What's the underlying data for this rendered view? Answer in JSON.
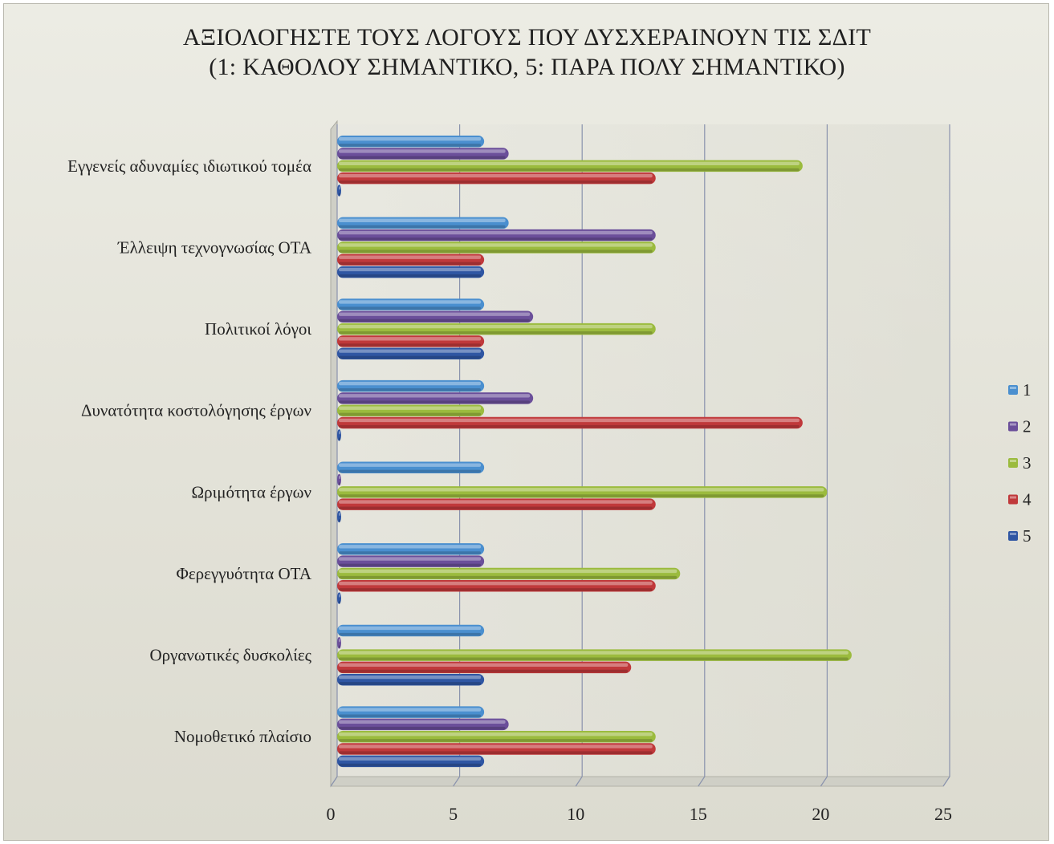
{
  "chart_data": {
    "type": "bar",
    "orientation": "horizontal",
    "title": "ΑΞΙΟΛΟΓΗΣΤΕ ΤΟΥΣ ΛΟΓΟΥΣ ΠΟΥ ΔΥΣΧΕΡΑΙΝΟΥΝ ΤΙΣ ΣΔΙΤ",
    "subtitle": "(1: ΚΑΘΟΛΟΥ ΣΗΜΑΝΤΙΚΟ, 5: ΠΑΡΑ ΠΟΛΥ ΣΗΜΑΝΤΙΚΟ)",
    "xlim": [
      0,
      25
    ],
    "xticks": [
      0,
      5,
      10,
      15,
      20,
      25
    ],
    "grid": true,
    "legend_position": "right",
    "categories": [
      "Εγγενείς αδυναμίες ιδιωτικού τομέα",
      "Έλλειψη τεχνογνωσίας ΟΤΑ",
      "Πολιτικοί λόγοι",
      "Δυνατότητα κοστολόγησης έργων",
      "Ωριμότητα έργων",
      "Φερεγγυότητα ΟΤΑ",
      "Οργανωτικές δυσκολίες",
      "Νομοθετικό πλαίσιο"
    ],
    "series": [
      {
        "name": "1",
        "color": "#4a8fcf",
        "values": [
          6,
          7,
          6,
          6,
          6,
          6,
          6,
          6
        ]
      },
      {
        "name": "2",
        "color": "#6b4f9a",
        "values": [
          7,
          13,
          8,
          8,
          0,
          6,
          0,
          7
        ]
      },
      {
        "name": "3",
        "color": "#9bbb3e",
        "values": [
          19,
          13,
          13,
          6,
          20,
          14,
          21,
          13
        ]
      },
      {
        "name": "4",
        "color": "#c0393b",
        "values": [
          13,
          6,
          6,
          19,
          13,
          13,
          12,
          13
        ]
      },
      {
        "name": "5",
        "color": "#2f56a3",
        "values": [
          0,
          6,
          6,
          0,
          0,
          0,
          6,
          6
        ]
      }
    ]
  }
}
